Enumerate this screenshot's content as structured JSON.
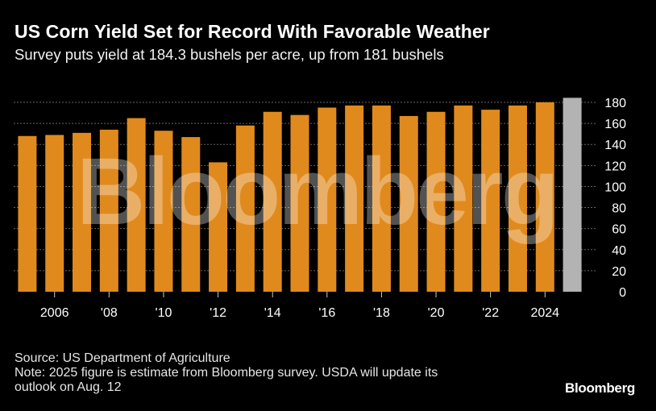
{
  "header": {
    "title": "US Corn Yield Set for Record With Favorable Weather",
    "subtitle": "Survey puts yield at 184.3 bushels per acre, up from 181 bushels"
  },
  "footer": {
    "source": "Source: US Department of Agriculture",
    "note_line1": "Note: 2025 figure is estimate from Bloomberg survey. USDA will update its",
    "note_line2": "outlook on Aug. 12"
  },
  "brand": "Bloomberg",
  "watermark": "Bloomberg",
  "colors": {
    "background": "#000000",
    "bar": "#e08a1e",
    "estimate_bar": "#b3b3b3",
    "gridline": "#666666",
    "text": "#ffffff"
  },
  "chart_data": {
    "type": "bar",
    "title": "US Corn Yield Set for Record With Favorable Weather",
    "subtitle": "Survey puts yield at 184.3 bushels per acre, up from 181 bushels",
    "xlabel": "",
    "ylabel": "",
    "categories": [
      2005,
      2006,
      2007,
      2008,
      2009,
      2010,
      2011,
      2012,
      2013,
      2014,
      2015,
      2016,
      2017,
      2018,
      2019,
      2020,
      2021,
      2022,
      2023,
      2024,
      2025
    ],
    "values": [
      148,
      149,
      151,
      154,
      165,
      153,
      147,
      123,
      158,
      171,
      168,
      175,
      177,
      177,
      167,
      171,
      177,
      173,
      177,
      180,
      184.3
    ],
    "estimate_flags": [
      false,
      false,
      false,
      false,
      false,
      false,
      false,
      false,
      false,
      false,
      false,
      false,
      false,
      false,
      false,
      false,
      false,
      false,
      false,
      false,
      true
    ],
    "x_tick_labels": [
      {
        "category": 2006,
        "label": "2006"
      },
      {
        "category": 2008,
        "label": "'08"
      },
      {
        "category": 2010,
        "label": "'10"
      },
      {
        "category": 2012,
        "label": "'12"
      },
      {
        "category": 2014,
        "label": "'14"
      },
      {
        "category": 2016,
        "label": "'16"
      },
      {
        "category": 2018,
        "label": "'18"
      },
      {
        "category": 2020,
        "label": "'20"
      },
      {
        "category": 2022,
        "label": "'22"
      },
      {
        "category": 2024,
        "label": "2024"
      }
    ],
    "y_ticks": [
      0,
      20,
      40,
      60,
      80,
      100,
      120,
      140,
      160,
      180
    ],
    "ylim": [
      0,
      180
    ],
    "y_axis_side": "right",
    "grid": true
  }
}
